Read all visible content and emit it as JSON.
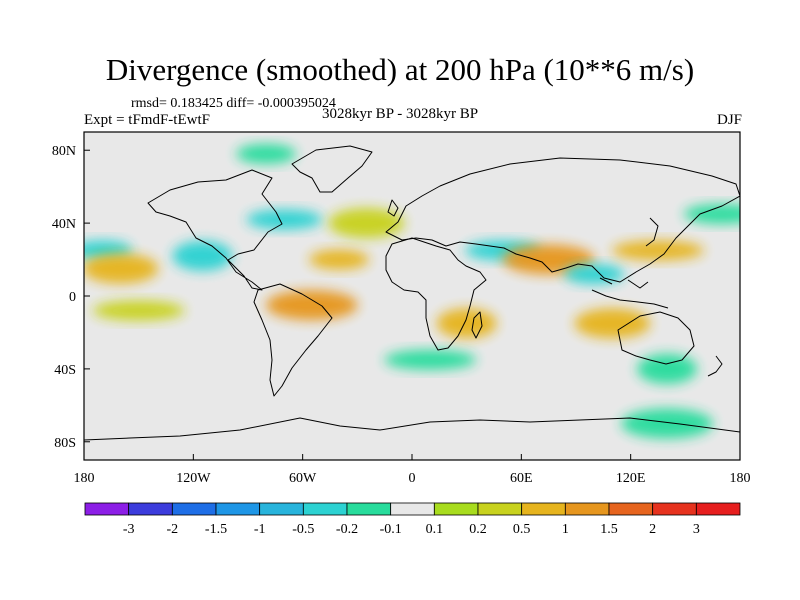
{
  "chart_data": {
    "type": "heatmap",
    "title": "Divergence (smoothed) at 200 hPa (10**6 m/s)",
    "stats_text": "rmsd= 0.183425 diff= -0.000395024",
    "experiment_label": "Expt = tFmdF-tEwtF",
    "period_label": "3028kyr BP - 3028kyr BP",
    "season_label": "DJF",
    "x_axis": {
      "range": [
        -180,
        180
      ],
      "ticks": [
        -180,
        -120,
        -60,
        0,
        60,
        120,
        180
      ],
      "tick_labels": [
        "180",
        "120W",
        "60W",
        "0",
        "60E",
        "120E",
        "180"
      ]
    },
    "y_axis": {
      "range": [
        -90,
        90
      ],
      "ticks": [
        80,
        40,
        0,
        -40,
        -80
      ],
      "tick_labels": [
        "80N",
        "40N",
        "0",
        "40S",
        "80S"
      ]
    },
    "colorbar": {
      "levels": [
        "-3",
        "-2",
        "-1.5",
        "-1",
        "-0.5",
        "-0.2",
        "-0.1",
        "0.1",
        "0.2",
        "0.5",
        "1",
        "1.5",
        "2",
        "3"
      ],
      "colors": [
        "#8c1ee6",
        "#3c3cdc",
        "#1e6ee6",
        "#1e96e6",
        "#28b4dc",
        "#2cd2d2",
        "#28dc9c",
        "#e8e8e8",
        "#a8dc1e",
        "#c8d21e",
        "#e6b41e",
        "#e6961e",
        "#e6641e",
        "#e6321e",
        "#e61e1e"
      ]
    },
    "anomaly_regions": [
      {
        "lon": -170,
        "lat": 25,
        "value": -0.5
      },
      {
        "lon": -160,
        "lat": 15,
        "value": 0.5
      },
      {
        "lon": -150,
        "lat": -8,
        "value": 0.2
      },
      {
        "lon": -115,
        "lat": 22,
        "value": -0.5
      },
      {
        "lon": -70,
        "lat": 42,
        "value": -0.5
      },
      {
        "lon": -55,
        "lat": -5,
        "value": 1
      },
      {
        "lon": -40,
        "lat": 20,
        "value": 0.5
      },
      {
        "lon": -25,
        "lat": 40,
        "value": 0.2
      },
      {
        "lon": 10,
        "lat": -35,
        "value": -0.2
      },
      {
        "lon": 30,
        "lat": -15,
        "value": 0.5
      },
      {
        "lon": 50,
        "lat": 25,
        "value": -0.5
      },
      {
        "lon": 75,
        "lat": 20,
        "value": 1
      },
      {
        "lon": 100,
        "lat": 12,
        "value": -0.5
      },
      {
        "lon": 110,
        "lat": -15,
        "value": 0.5
      },
      {
        "lon": 135,
        "lat": 25,
        "value": 0.5
      },
      {
        "lon": 140,
        "lat": -40,
        "value": -0.2
      },
      {
        "lon": 170,
        "lat": 45,
        "value": -0.2
      },
      {
        "lon": 140,
        "lat": -70,
        "value": -0.2
      },
      {
        "lon": -80,
        "lat": 78,
        "value": -0.2
      }
    ]
  }
}
